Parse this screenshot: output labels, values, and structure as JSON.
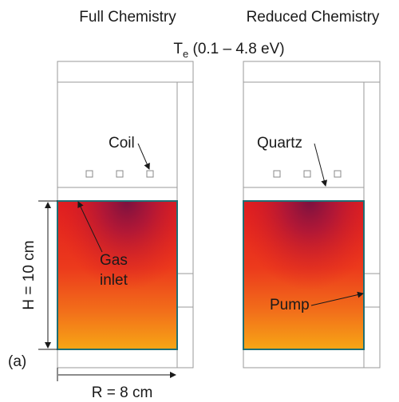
{
  "titles": {
    "left": "Full Chemistry",
    "right": "Reduced Chemistry"
  },
  "subtitle": {
    "prefix": "T",
    "subscript": "e",
    "range": " (0.1 – 4.8 eV)"
  },
  "labels": {
    "coil": "Coil",
    "quartz": "Quartz",
    "gas_line1": "Gas",
    "gas_line2": "inlet",
    "pump": "Pump",
    "height": "H = 10 cm",
    "radius": "R = 8 cm",
    "panel": "(a)"
  },
  "colors": {
    "outline": "#9a9a9a",
    "chamber_border": "#1f6e74",
    "arrow": "#1a1a1a",
    "hot": "#7a1140",
    "mid": "#e6231e",
    "warm": "#f05a1a",
    "cool": "#f6a214"
  }
}
